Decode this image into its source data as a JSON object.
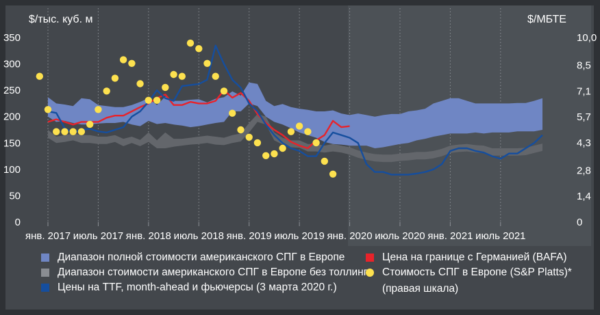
{
  "chart_data": {
    "type": "line",
    "units_left": "$/тыс. куб. м",
    "units_right": "$/МБТЕ",
    "left_axis": {
      "min": 0,
      "max": 350,
      "ticks": [
        "0",
        "50",
        "100",
        "150",
        "200",
        "250",
        "300",
        "350"
      ]
    },
    "right_axis": {
      "min": 0,
      "max": 10.0,
      "ticks": [
        "0",
        "1,4",
        "2,8",
        "4,3",
        "5,7",
        "7,1",
        "8,5",
        "10,0"
      ]
    },
    "x_labels": [
      "янв. 2017",
      "июль 2017",
      "янв. 2018",
      "июль 2018",
      "янв. 2019",
      "июль 2019",
      "янв. 2020",
      "июль 2020",
      "янв. 2021",
      "июль 2021"
    ],
    "x_range": [
      "2017-01",
      "2021-12"
    ],
    "grid": "vertical dotted",
    "series": [
      {
        "name": "Диапазон полной стоимости американского СПГ в Европе",
        "kind": "band",
        "color": "#6f86c4",
        "x": [
          "2017-01",
          "2017-02",
          "2017-03",
          "2017-04",
          "2017-05",
          "2017-06",
          "2017-07",
          "2017-08",
          "2017-09",
          "2017-10",
          "2017-11",
          "2017-12",
          "2018-01",
          "2018-02",
          "2018-03",
          "2018-04",
          "2018-05",
          "2018-06",
          "2018-07",
          "2018-08",
          "2018-09",
          "2018-10",
          "2018-11",
          "2018-12",
          "2019-01",
          "2019-02",
          "2019-03",
          "2019-04",
          "2019-05",
          "2019-06",
          "2019-07",
          "2019-08",
          "2019-09",
          "2019-10",
          "2019-11",
          "2019-12",
          "2020-01",
          "2020-02",
          "2020-03",
          "2020-04",
          "2020-05",
          "2020-06",
          "2020-07",
          "2020-08",
          "2020-09",
          "2020-10",
          "2020-11",
          "2020-12",
          "2021-01",
          "2021-02",
          "2021-03",
          "2021-04",
          "2021-05",
          "2021-06",
          "2021-07",
          "2021-08",
          "2021-09",
          "2021-10",
          "2021-11",
          "2021-12"
        ],
        "upper": [
          237,
          225,
          223,
          220,
          235,
          233,
          222,
          220,
          218,
          218,
          222,
          228,
          235,
          222,
          238,
          230,
          230,
          232,
          233,
          227,
          234,
          237,
          248,
          240,
          265,
          262,
          230,
          220,
          224,
          218,
          215,
          213,
          210,
          210,
          212,
          206,
          203,
          206,
          203,
          200,
          203,
          205,
          205,
          210,
          212,
          215,
          225,
          230,
          235,
          235,
          230,
          225,
          225,
          225,
          225,
          225,
          226,
          226,
          230,
          235
        ],
        "lower": [
          200,
          190,
          192,
          188,
          185,
          185,
          187,
          188,
          188,
          190,
          185,
          182,
          192,
          186,
          188,
          185,
          183,
          180,
          182,
          185,
          188,
          190,
          210,
          210,
          225,
          220,
          200,
          190,
          185,
          178,
          170,
          165,
          160,
          152,
          148,
          147,
          145,
          145,
          145,
          140,
          142,
          145,
          148,
          150,
          155,
          158,
          162,
          165,
          168,
          168,
          168,
          170,
          168,
          170,
          170,
          170,
          172,
          172,
          172,
          175
        ]
      },
      {
        "name": "Диапазон стоимости американского СПГ в Европе без толлинга",
        "kind": "band",
        "color": "#63666b",
        "x": [
          "2017-01",
          "2017-02",
          "2017-03",
          "2017-04",
          "2017-05",
          "2017-06",
          "2017-07",
          "2017-08",
          "2017-09",
          "2017-10",
          "2017-11",
          "2017-12",
          "2018-01",
          "2018-02",
          "2018-03",
          "2018-04",
          "2018-05",
          "2018-06",
          "2018-07",
          "2018-08",
          "2018-09",
          "2018-10",
          "2018-11",
          "2018-12",
          "2019-01",
          "2019-02",
          "2019-03",
          "2019-04",
          "2019-05",
          "2019-06",
          "2019-07",
          "2019-08",
          "2019-09",
          "2019-10",
          "2019-11",
          "2019-12",
          "2020-01",
          "2020-02",
          "2020-03",
          "2020-04",
          "2020-05",
          "2020-06",
          "2020-07",
          "2020-08",
          "2020-09",
          "2020-10",
          "2020-11",
          "2020-12",
          "2021-01",
          "2021-02",
          "2021-03",
          "2021-04",
          "2021-05",
          "2021-06",
          "2021-07",
          "2021-08",
          "2021-09",
          "2021-10",
          "2021-11",
          "2021-12"
        ],
        "upper": [
          175,
          162,
          165,
          168,
          165,
          165,
          162,
          162,
          165,
          158,
          162,
          156,
          170,
          155,
          170,
          158,
          158,
          160,
          162,
          164,
          162,
          160,
          165,
          168,
          188,
          205,
          200,
          170,
          160,
          155,
          155,
          148,
          148,
          145,
          148,
          145,
          142,
          136,
          132,
          129,
          128,
          128,
          130,
          131,
          133,
          133,
          135,
          139,
          145,
          147,
          148,
          146,
          145,
          140,
          140,
          140,
          140,
          141,
          145,
          149
        ],
        "lower": [
          160,
          150,
          152,
          155,
          150,
          150,
          148,
          148,
          152,
          144,
          150,
          144,
          152,
          140,
          140,
          143,
          145,
          147,
          148,
          150,
          147,
          146,
          150,
          153,
          170,
          190,
          185,
          155,
          147,
          142,
          141,
          134,
          134,
          132,
          134,
          132,
          128,
          122,
          118,
          115,
          114,
          114,
          116,
          117,
          119,
          119,
          121,
          125,
          131,
          133,
          134,
          132,
          131,
          126,
          126,
          126,
          126,
          127,
          131,
          135
        ]
      },
      {
        "name": "Цена на границе с Германией (BAFA)",
        "kind": "line",
        "color": "#e8232a",
        "x": [
          "2017-01",
          "2017-02",
          "2017-03",
          "2017-04",
          "2017-05",
          "2017-06",
          "2017-07",
          "2017-08",
          "2017-09",
          "2017-10",
          "2017-11",
          "2017-12",
          "2018-01",
          "2018-02",
          "2018-03",
          "2018-04",
          "2018-05",
          "2018-06",
          "2018-07",
          "2018-08",
          "2018-09",
          "2018-10",
          "2018-11",
          "2018-12",
          "2019-01",
          "2019-02",
          "2019-03",
          "2019-04",
          "2019-05",
          "2019-06",
          "2019-07",
          "2019-08",
          "2019-09",
          "2019-10",
          "2019-11",
          "2019-12",
          "2020-01"
        ],
        "values": [
          190,
          195,
          190,
          185,
          190,
          190,
          190,
          198,
          202,
          202,
          210,
          218,
          225,
          235,
          242,
          222,
          222,
          228,
          225,
          225,
          230,
          250,
          236,
          245,
          230,
          205,
          188,
          175,
          165,
          152,
          145,
          140,
          155,
          165,
          192,
          180,
          182
        ]
      },
      {
        "name": "Цены на TTF, month-ahead и фьючерсы (3 марта 2020 г.)",
        "kind": "line",
        "color": "#154e9e",
        "x": [
          "2017-01",
          "2017-02",
          "2017-03",
          "2017-04",
          "2017-05",
          "2017-06",
          "2017-07",
          "2017-08",
          "2017-09",
          "2017-10",
          "2017-11",
          "2017-12",
          "2018-01",
          "2018-02",
          "2018-03",
          "2018-04",
          "2018-05",
          "2018-06",
          "2018-07",
          "2018-08",
          "2018-09",
          "2018-10",
          "2018-11",
          "2018-12",
          "2019-01",
          "2019-02",
          "2019-03",
          "2019-04",
          "2019-05",
          "2019-06",
          "2019-07",
          "2019-08",
          "2019-09",
          "2019-10",
          "2019-11",
          "2019-12",
          "2020-01",
          "2020-02",
          "2020-03",
          "2020-04",
          "2020-05",
          "2020-06",
          "2020-07",
          "2020-08",
          "2020-09",
          "2020-10",
          "2020-11",
          "2020-12",
          "2021-01",
          "2021-02",
          "2021-03",
          "2021-04",
          "2021-05",
          "2021-06",
          "2021-07",
          "2021-08",
          "2021-09",
          "2021-10",
          "2021-11",
          "2021-12"
        ],
        "values": [
          210,
          207,
          178,
          170,
          175,
          177,
          172,
          170,
          175,
          180,
          200,
          210,
          228,
          250,
          235,
          230,
          258,
          260,
          262,
          270,
          335,
          300,
          270,
          255,
          225,
          210,
          185,
          165,
          150,
          140,
          135,
          125,
          125,
          150,
          170,
          165,
          160,
          150,
          110,
          95,
          95,
          90,
          90,
          90,
          92,
          95,
          100,
          110,
          135,
          140,
          140,
          135,
          132,
          125,
          120,
          130,
          130,
          140,
          150,
          165
        ]
      },
      {
        "name": "Стоимость СПГ в Европе (S&P Platts)*",
        "name_2": "(правая шкала)",
        "kind": "points",
        "axis": "right",
        "color": "#fde14f",
        "x": [
          "2016-12",
          "2017-01",
          "2017-02",
          "2017-03",
          "2017-04",
          "2017-05",
          "2017-06",
          "2017-07",
          "2017-08",
          "2017-09",
          "2017-10",
          "2017-11",
          "2017-12",
          "2018-01",
          "2018-02",
          "2018-03",
          "2018-04",
          "2018-05",
          "2018-06",
          "2018-07",
          "2018-08",
          "2018-09",
          "2018-10",
          "2018-11",
          "2018-12",
          "2019-01",
          "2019-02",
          "2019-03",
          "2019-04",
          "2019-05",
          "2019-06",
          "2019-07",
          "2019-08",
          "2019-09",
          "2019-10",
          "2019-11",
          "2019-12",
          "2020-01",
          "2020-02"
        ],
        "values": [
          7.9,
          6.1,
          4.9,
          4.9,
          4.9,
          4.9,
          5.3,
          6.1,
          7.1,
          7.8,
          8.8,
          8.6,
          7.5,
          6.6,
          6.6,
          7.3,
          8.0,
          7.9,
          9.7,
          9.4,
          8.6,
          7.9,
          7.1,
          5.9,
          5.0,
          4.6,
          4.3,
          3.6,
          3.7,
          4.0,
          4.9,
          5.2,
          4.9,
          4.3,
          3.3,
          2.6,
          null,
          null,
          null
        ]
      }
    ]
  }
}
